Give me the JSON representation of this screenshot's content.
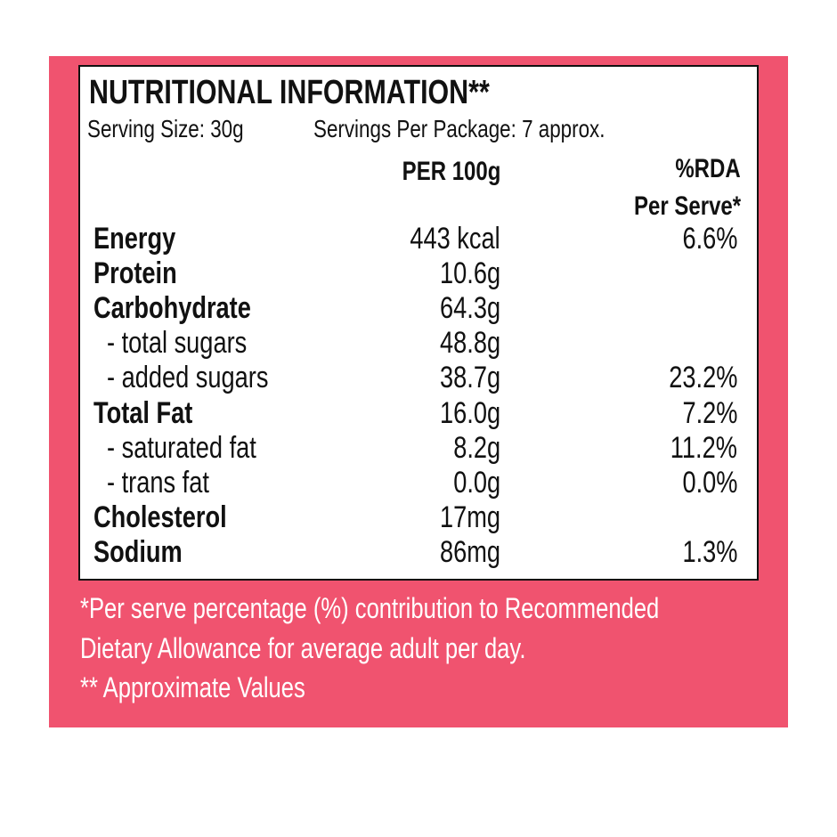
{
  "header": {
    "title": "NUTRITIONAL INFORMATION**",
    "serving_size": "Serving Size: 30g",
    "servings_per_package": "Servings Per Package: 7 approx."
  },
  "table": {
    "columns": {
      "per_100g": "PER 100g",
      "rda": [
        "%RDA",
        "Per Serve*"
      ]
    },
    "rows": [
      {
        "label": "Energy",
        "bold": true,
        "level": 0,
        "per_100g": "443 kcal",
        "rda": "6.6%"
      },
      {
        "label": "Protein",
        "bold": true,
        "level": 0,
        "per_100g": "10.6g",
        "rda": null
      },
      {
        "label": "Carbohydrate",
        "bold": true,
        "level": 0,
        "per_100g": "64.3g",
        "rda": null
      },
      {
        "label": "- total sugars",
        "bold": false,
        "level": 1,
        "per_100g": "48.8g",
        "rda": null
      },
      {
        "label": "- added sugars",
        "bold": false,
        "level": 1,
        "per_100g": "38.7g",
        "rda": "23.2%"
      },
      {
        "label": "Total Fat",
        "bold": true,
        "level": 0,
        "per_100g": "16.0g",
        "rda": "7.2%"
      },
      {
        "label": "- saturated fat",
        "bold": false,
        "level": 1,
        "per_100g": "8.2g",
        "rda": "11.2%"
      },
      {
        "label": "- trans fat",
        "bold": false,
        "level": 1,
        "per_100g": "0.0g",
        "rda": "0.0%"
      },
      {
        "label": "Cholesterol",
        "bold": true,
        "level": 0,
        "per_100g": "17mg",
        "rda": null
      },
      {
        "label": "Sodium",
        "bold": true,
        "level": 0,
        "per_100g": "86mg",
        "rda": "1.3%"
      }
    ]
  },
  "footer": {
    "notes": [
      "*Per serve percentage (%) contribution to Recommended",
      "Dietary Allowance for average adult per day.",
      "** Approximate Values"
    ]
  }
}
